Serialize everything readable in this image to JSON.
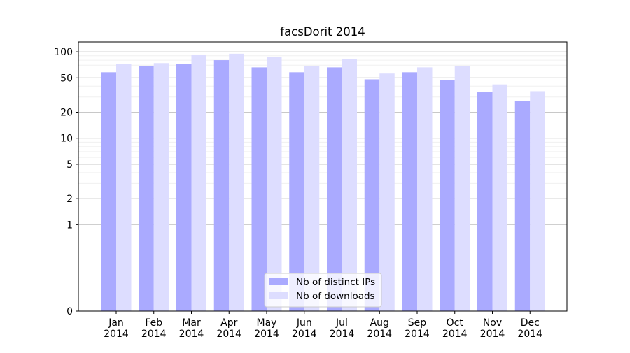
{
  "chart_data": {
    "type": "bar",
    "title": "facsDorit 2014",
    "xlabel": "",
    "ylabel": "",
    "yscale": "symlog",
    "ylim": [
      0,
      130
    ],
    "yticks": [
      0,
      1,
      2,
      5,
      10,
      20,
      50,
      100
    ],
    "ytick_labels": [
      "0",
      "1",
      "2",
      "5",
      "10",
      "20",
      "50",
      "100"
    ],
    "grid": "horizontal",
    "categories": [
      "Jan 2014",
      "Feb 2014",
      "Mar 2014",
      "Apr 2014",
      "May 2014",
      "Jun 2014",
      "Jul 2014",
      "Aug 2014",
      "Sep 2014",
      "Oct 2014",
      "Nov 2014",
      "Dec 2014"
    ],
    "category_lines": [
      [
        "Jan",
        "2014"
      ],
      [
        "Feb",
        "2014"
      ],
      [
        "Mar",
        "2014"
      ],
      [
        "Apr",
        "2014"
      ],
      [
        "May",
        "2014"
      ],
      [
        "Jun",
        "2014"
      ],
      [
        "Jul",
        "2014"
      ],
      [
        "Aug",
        "2014"
      ],
      [
        "Sep",
        "2014"
      ],
      [
        "Oct",
        "2014"
      ],
      [
        "Nov",
        "2014"
      ],
      [
        "Dec",
        "2014"
      ]
    ],
    "series": [
      {
        "name": "Nb of distinct IPs",
        "color": "#aaaaff",
        "values": [
          58,
          69,
          72,
          80,
          66,
          58,
          66,
          48,
          58,
          47,
          34,
          27
        ]
      },
      {
        "name": "Nb of downloads",
        "color": "#ddddff",
        "values": [
          72,
          74,
          93,
          95,
          87,
          68,
          82,
          56,
          66,
          68,
          42,
          35
        ]
      }
    ],
    "legend": {
      "position": "bottom-center"
    }
  }
}
